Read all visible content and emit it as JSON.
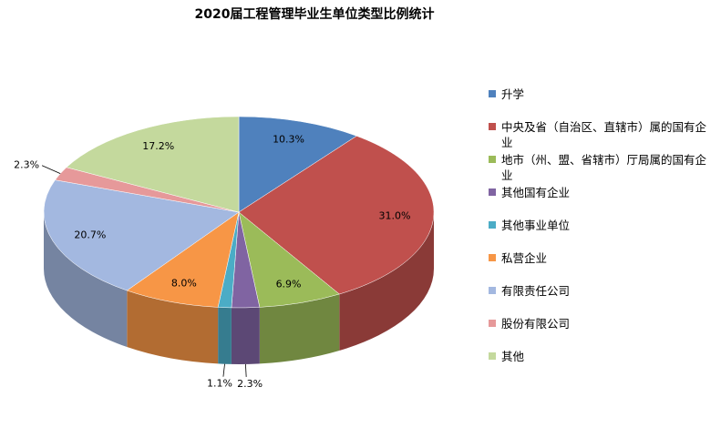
{
  "chart_data": {
    "type": "pie",
    "title": "2020届工程管理毕业生单位类型比例统计",
    "categories": [
      "升学",
      "中央及省（自治区、直辖市）属的国有企业",
      "地市（州、盟、省辖市）厅局属的国有企业",
      "其他国有企业",
      "其他事业单位",
      "私营企业",
      "有限责任公司",
      "股份有限公司",
      "其他"
    ],
    "values": [
      10.3,
      31.0,
      6.9,
      2.3,
      1.1,
      8.0,
      20.7,
      2.3,
      17.2
    ],
    "value_labels": [
      "10.3%",
      "31.0%",
      "6.9%",
      "2.3%",
      "1.1%",
      "8.0%",
      "20.7%",
      "2.3%",
      "17.2%"
    ],
    "colors": [
      "#4f81bd",
      "#c0504d",
      "#9bbb59",
      "#8064a2",
      "#4bacc6",
      "#f79646",
      "#a3b8e0",
      "#e6999a",
      "#c4d99d"
    ],
    "legend_position": "right"
  }
}
